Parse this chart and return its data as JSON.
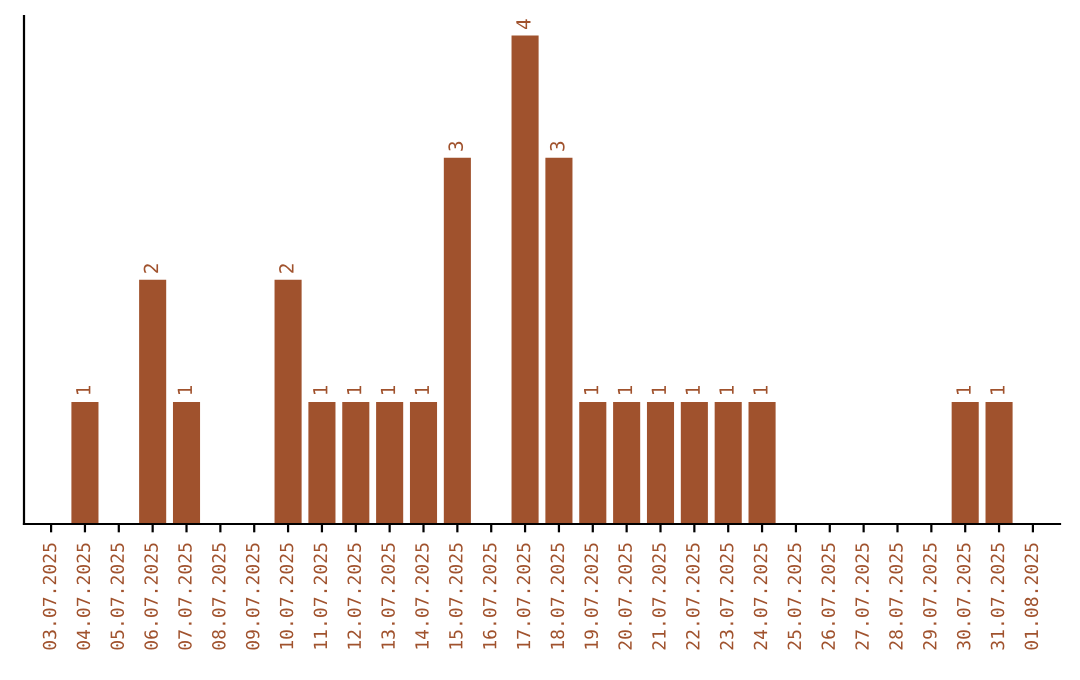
{
  "chart_data": {
    "type": "bar",
    "categories": [
      "03.07.2025",
      "04.07.2025",
      "05.07.2025",
      "06.07.2025",
      "07.07.2025",
      "08.07.2025",
      "09.07.2025",
      "10.07.2025",
      "11.07.2025",
      "12.07.2025",
      "13.07.2025",
      "14.07.2025",
      "15.07.2025",
      "16.07.2025",
      "17.07.2025",
      "18.07.2025",
      "19.07.2025",
      "20.07.2025",
      "21.07.2025",
      "22.07.2025",
      "23.07.2025",
      "24.07.2025",
      "25.07.2025",
      "26.07.2025",
      "27.07.2025",
      "28.07.2025",
      "29.07.2025",
      "30.07.2025",
      "31.07.2025",
      "01.08.2025"
    ],
    "values": [
      0,
      1,
      0,
      2,
      1,
      0,
      0,
      2,
      1,
      1,
      1,
      1,
      3,
      0,
      4,
      3,
      1,
      1,
      1,
      1,
      1,
      1,
      0,
      0,
      0,
      0,
      0,
      1,
      1,
      0
    ],
    "value_labels": [
      null,
      "1",
      null,
      "2",
      "1",
      null,
      null,
      "2",
      "1",
      "1",
      "1",
      "1",
      "3",
      null,
      "4",
      "3",
      "1",
      "1",
      "1",
      "1",
      "1",
      "1",
      null,
      null,
      null,
      null,
      null,
      "1",
      "1",
      null
    ],
    "color": "#a0522d",
    "tick_labels": "x",
    "grid": false,
    "legend": false
  }
}
